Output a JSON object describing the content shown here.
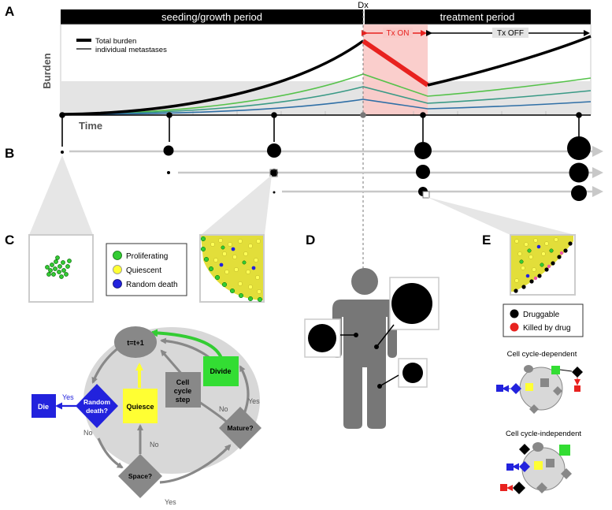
{
  "panel_a": {
    "letter": "A",
    "bar_left_label": "seeding/growth period",
    "bar_right_label": "treatment period",
    "dx_label": "Dx",
    "tx_on_label": "Tx ON",
    "tx_off_label": "Tx OFF",
    "legend_total": "Total burden",
    "legend_individual": "individual metastases",
    "ylabel": "Burden",
    "xlabel": "Time",
    "colors": {
      "total": "#000000",
      "treated": "#e8221f",
      "shade": "#f9c9c7",
      "series1": "#55c24a",
      "series2": "#3a9a86",
      "series3": "#2f6fa6"
    }
  },
  "panel_b": {
    "letter": "B"
  },
  "panel_c": {
    "letter": "C",
    "legend": [
      {
        "label": "Proliferating",
        "color": "#33cc33"
      },
      {
        "label": "Quiescent",
        "color": "#ffff33"
      },
      {
        "label": "Random death",
        "color": "#2222dd"
      }
    ],
    "flow": {
      "tick": "t=t+1",
      "divide": "Divide",
      "cell_cycle_step": [
        "Cell",
        "cycle",
        "step"
      ],
      "random_death": [
        "Random",
        "death?"
      ],
      "quiesce": "Quiesce",
      "die": "Die",
      "mature": "Mature?",
      "space": "Space?",
      "yes": "Yes",
      "no": "No"
    }
  },
  "panel_d": {
    "letter": "D"
  },
  "panel_e": {
    "letter": "E",
    "legend": [
      {
        "label": "Druggable",
        "color": "#000000"
      },
      {
        "label": "Killed by drug",
        "color": "#e8221f"
      }
    ],
    "mini_dependent": "Cell cycle-dependent",
    "mini_independent": "Cell cycle-independent"
  }
}
